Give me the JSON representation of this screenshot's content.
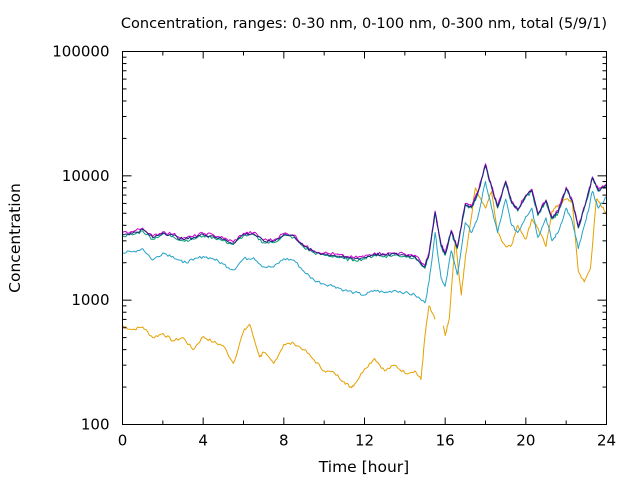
{
  "chart_data": {
    "type": "line",
    "title": "Concentration, ranges: 0-30 nm, 0-100 nm, 0-300 nm, total (5/9/1)",
    "xlabel": "Time [hour]",
    "ylabel": "Concentration",
    "xlim": [
      0,
      24
    ],
    "ylim": [
      100,
      100000
    ],
    "yscale": "log",
    "grid": false,
    "xticks": [
      0,
      4,
      8,
      12,
      16,
      20,
      24
    ],
    "xtick_labels": [
      "0",
      "4",
      "8",
      "12",
      "16",
      "20",
      "24"
    ],
    "yticks": [
      100,
      1000,
      10000,
      100000
    ],
    "ytick_labels": [
      "100",
      "1000",
      "10000",
      "100000"
    ],
    "series": [
      {
        "color": "#e6a000",
        "x": [
          0,
          0.5,
          1,
          1.5,
          2,
          2.5,
          3,
          3.5,
          4,
          4.5,
          5,
          5.5,
          6,
          6.3,
          6.8,
          7,
          7.5,
          8,
          8.5,
          9,
          9.5,
          10,
          10.5,
          11,
          11.3,
          11.5,
          12,
          12.5,
          13,
          13.5,
          14,
          14.5,
          14.8,
          15,
          15.2,
          15.5,
          null,
          15.9,
          16,
          16.2,
          16.5,
          16.8,
          17,
          17.5,
          18,
          18.3,
          18.6,
          19,
          19.3,
          19.6,
          20,
          20.3,
          20.6,
          21,
          21.3,
          21.6,
          22,
          22.3,
          22.6,
          22.9,
          23.2,
          23.5,
          23.8,
          24
        ],
        "y": [
          620,
          580,
          610,
          500,
          540,
          470,
          500,
          400,
          510,
          460,
          430,
          310,
          560,
          640,
          350,
          380,
          310,
          440,
          450,
          400,
          330,
          270,
          260,
          220,
          200,
          210,
          280,
          340,
          270,
          300,
          260,
          270,
          230,
          520,
          900,
          700,
          null,
          620,
          520,
          700,
          3000,
          1100,
          2200,
          8000,
          5500,
          7500,
          3500,
          2700,
          2800,
          4000,
          3100,
          4500,
          3800,
          2700,
          5200,
          5800,
          6500,
          6200,
          1700,
          1400,
          1800,
          6500,
          5600,
          5000
        ]
      },
      {
        "color": "#25a2c8",
        "x": [
          0,
          0.5,
          1,
          1.5,
          2,
          2.5,
          3,
          3.5,
          4,
          4.5,
          5,
          5.5,
          6,
          6.5,
          7,
          7.5,
          8,
          8.5,
          9,
          9.5,
          10,
          10.5,
          11,
          11.5,
          12,
          12.5,
          13,
          13.5,
          14,
          14.5,
          15,
          15.2,
          15.5,
          15.8,
          16,
          16.3,
          16.6,
          17,
          17.3,
          17.6,
          18,
          18.3,
          18.6,
          19,
          19.3,
          19.6,
          20,
          20.3,
          20.6,
          21,
          21.3,
          21.6,
          22,
          22.3,
          22.6,
          23,
          23.3,
          23.6,
          24
        ],
        "y": [
          2400,
          2450,
          2600,
          2100,
          2400,
          2250,
          2000,
          2100,
          2250,
          2150,
          1950,
          1750,
          2150,
          2200,
          1850,
          1850,
          2150,
          2100,
          1700,
          1450,
          1350,
          1300,
          1200,
          1150,
          1100,
          1200,
          1150,
          1200,
          1150,
          1100,
          950,
          1400,
          3500,
          1500,
          1300,
          2500,
          1600,
          4200,
          3500,
          4500,
          9000,
          5500,
          3500,
          6500,
          4000,
          3500,
          4700,
          5500,
          3200,
          4600,
          3000,
          3500,
          5500,
          4300,
          2600,
          4500,
          7500,
          5500,
          6800
        ]
      },
      {
        "color": "#009e73",
        "x": [
          0,
          0.5,
          1,
          1.5,
          2,
          2.5,
          3,
          3.5,
          4,
          4.5,
          5,
          5.5,
          6,
          6.5,
          7,
          7.5,
          8,
          8.5,
          9,
          9.5,
          10,
          10.5,
          11,
          11.5,
          12,
          12.5,
          13,
          13.5,
          14,
          14.5,
          15,
          15.2,
          15.5,
          15.8,
          16,
          16.3,
          16.6,
          17,
          17.3,
          17.6,
          18,
          18.3,
          18.6,
          19,
          19.3,
          19.6,
          20,
          20.3,
          20.6,
          21,
          21.3,
          21.6,
          22,
          22.3,
          22.6,
          23,
          23.3,
          23.6,
          24
        ],
        "y": [
          3300,
          3350,
          3600,
          3100,
          3400,
          3250,
          3000,
          3100,
          3300,
          3200,
          3000,
          2800,
          3300,
          3350,
          2900,
          2900,
          3300,
          3200,
          2650,
          2400,
          2300,
          2250,
          2150,
          2100,
          2150,
          2300,
          2250,
          2300,
          2250,
          2200,
          1800,
          2300,
          5000,
          2700,
          2300,
          3500,
          2600,
          5800,
          5500,
          7000,
          12000,
          8000,
          5500,
          8800,
          6000,
          5200,
          6800,
          7500,
          4800,
          6200,
          4500,
          5000,
          7800,
          6200,
          3800,
          6200,
          9500,
          7500,
          8300
        ]
      },
      {
        "color": "#cc00cc",
        "x": [
          0,
          0.5,
          1,
          1.5,
          2,
          2.5,
          3,
          3.5,
          4,
          4.5,
          5,
          5.5,
          6,
          6.5,
          7,
          7.5,
          8,
          8.5,
          9,
          9.5,
          10,
          10.5,
          11,
          11.5,
          12,
          12.5,
          13,
          13.5,
          14,
          14.5,
          15,
          15.2,
          15.5,
          15.8,
          16,
          16.3,
          16.6,
          17,
          17.3,
          17.6,
          18,
          18.3,
          18.6,
          19,
          19.3,
          19.6,
          20,
          20.3,
          20.6,
          21,
          21.3,
          21.6,
          22,
          22.3,
          22.6,
          23,
          23.3,
          23.6,
          24
        ],
        "y": [
          3500,
          3550,
          3800,
          3250,
          3550,
          3400,
          3150,
          3250,
          3450,
          3350,
          3150,
          2950,
          3450,
          3500,
          3050,
          3050,
          3450,
          3350,
          2750,
          2500,
          2400,
          2350,
          2250,
          2200,
          2250,
          2400,
          2350,
          2400,
          2350,
          2300,
          1900,
          2400,
          5200,
          2800,
          2400,
          3650,
          2700,
          6000,
          5700,
          7300,
          12500,
          8300,
          5700,
          9100,
          6200,
          5400,
          7000,
          7800,
          5000,
          6400,
          4700,
          5200,
          8100,
          6400,
          3900,
          6400,
          9800,
          7800,
          8600
        ]
      },
      {
        "color": "#23237f",
        "x": [
          0,
          0.5,
          1,
          1.5,
          2,
          2.5,
          3,
          3.5,
          4,
          4.5,
          5,
          5.5,
          6,
          6.5,
          7,
          7.5,
          8,
          8.5,
          9,
          9.5,
          10,
          10.5,
          11,
          11.5,
          12,
          12.5,
          13,
          13.5,
          14,
          14.5,
          15,
          15.2,
          15.5,
          15.8,
          16,
          16.3,
          16.6,
          17,
          17.3,
          17.6,
          18,
          18.3,
          18.6,
          19,
          19.3,
          19.6,
          20,
          20.3,
          20.6,
          21,
          21.3,
          21.6,
          22,
          22.3,
          22.6,
          23,
          23.3,
          23.6,
          24
        ],
        "y": [
          3400,
          3450,
          3700,
          3180,
          3480,
          3320,
          3080,
          3180,
          3380,
          3280,
          3080,
          2880,
          3380,
          3420,
          2980,
          2980,
          3380,
          3280,
          2700,
          2450,
          2350,
          2300,
          2200,
          2150,
          2200,
          2350,
          2300,
          2350,
          2300,
          2250,
          1850,
          2350,
          5100,
          2750,
          2350,
          3580,
          2650,
          5900,
          5600,
          7150,
          12200,
          8150,
          5600,
          8950,
          6100,
          5300,
          6900,
          7650,
          4900,
          6300,
          4600,
          5100,
          7950,
          6300,
          3850,
          6300,
          9650,
          7650,
          8450
        ]
      }
    ]
  }
}
